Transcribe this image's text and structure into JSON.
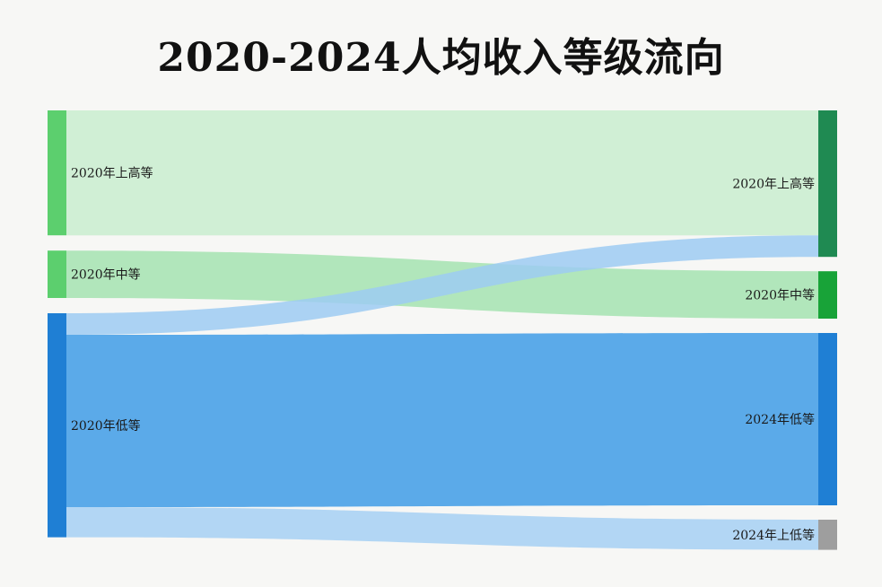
{
  "chart_data": {
    "type": "sankey",
    "title": "2020-2024人均收入等级流向",
    "nodes": [
      {
        "id": "src_high",
        "label": "2020年上高等",
        "column": "source",
        "color": "#5ccf6e"
      },
      {
        "id": "src_mid",
        "label": "2020年中等",
        "column": "source",
        "color": "#5ccf6e"
      },
      {
        "id": "src_low",
        "label": "2020年低等",
        "column": "source",
        "color": "#1f7fd4"
      },
      {
        "id": "dst_high",
        "label": "2020年上高等",
        "column": "target",
        "color": "#1f8a52"
      },
      {
        "id": "dst_mid",
        "label": "2020年中等",
        "column": "target",
        "color": "#18a338"
      },
      {
        "id": "dst_low",
        "label": "2024年低等",
        "column": "target",
        "color": "#1f7fd4"
      },
      {
        "id": "dst_lowup",
        "label": "2024年上低等",
        "column": "target",
        "color": "#9e9e9e"
      }
    ],
    "links": [
      {
        "source": "src_high",
        "target": "dst_high",
        "value": 29,
        "color": "#c9edcf"
      },
      {
        "source": "src_mid",
        "target": "dst_mid",
        "value": 11,
        "color": "#a5e3b0"
      },
      {
        "source": "src_low",
        "target": "dst_high",
        "value": 5,
        "color": "#9ecbf2"
      },
      {
        "source": "src_low",
        "target": "dst_low",
        "value": 40,
        "color": "#3f9ce6"
      },
      {
        "source": "src_low",
        "target": "dst_lowup",
        "value": 7,
        "color": "#a6d0f3"
      }
    ]
  }
}
